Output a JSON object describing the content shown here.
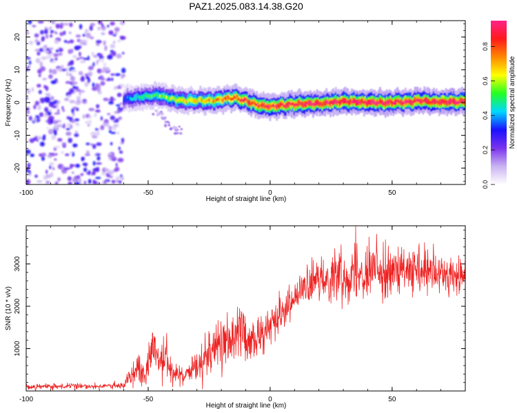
{
  "title": "PAZ1.2025.083.14.38.G20",
  "chart_data": [
    {
      "type": "heatmap",
      "xlabel": "Height of straight line (km)",
      "ylabel": "Frequency (Hz)",
      "xlim": [
        -100,
        80
      ],
      "ylim": [
        -25,
        25
      ],
      "xticks": [
        -100,
        -50,
        0,
        50
      ],
      "yticks": [
        -20,
        -10,
        0,
        10,
        20
      ],
      "colorbar": {
        "label": "Normalized spectral amplitude",
        "range": [
          0,
          0.95
        ],
        "ticks": [
          0.0,
          0.2,
          0.4,
          0.6,
          0.8
        ],
        "colors": [
          "#ffffff",
          "#c9b3f2",
          "#7a33ee",
          "#1a10ff",
          "#00d8ff",
          "#22ff22",
          "#ffff00",
          "#ff8800",
          "#ff1a1a",
          "#ff2288"
        ]
      },
      "noise_region": {
        "x": [
          -100,
          -60
        ],
        "f": [
          -25,
          25
        ]
      },
      "ridge": {
        "x": [
          -60,
          -55,
          -50,
          -45,
          -40,
          -35,
          -30,
          -25,
          -20,
          -15,
          -10,
          -5,
          0,
          5,
          10,
          15,
          20,
          25,
          30,
          35,
          40,
          45,
          50,
          55,
          60,
          65,
          70,
          75,
          80
        ],
        "f": [
          1.0,
          1.5,
          2.0,
          2.2,
          1.0,
          0.6,
          0.6,
          0.6,
          1.0,
          1.6,
          0.5,
          -0.8,
          -1.2,
          -0.8,
          -0.5,
          -0.4,
          -0.3,
          0.0,
          0.3,
          0.2,
          0.1,
          0.0,
          0.0,
          0.2,
          0.5,
          0.4,
          0.2,
          0.3,
          0.3
        ],
        "amplitude": [
          0.35,
          0.45,
          0.5,
          0.55,
          0.6,
          0.65,
          0.65,
          0.7,
          0.75,
          0.8,
          0.85,
          0.85,
          0.85,
          0.88,
          0.9,
          0.9,
          0.9,
          0.92,
          0.92,
          0.92,
          0.92,
          0.92,
          0.92,
          0.92,
          0.92,
          0.92,
          0.92,
          0.92,
          0.92
        ]
      },
      "side_lobe": {
        "x": [
          -48,
          -45,
          -42,
          -40,
          -38,
          -36
        ],
        "f": [
          -2,
          -4,
          -6,
          -8,
          -8.5,
          -9
        ]
      }
    },
    {
      "type": "line",
      "xlabel": "Height of straight line (km)",
      "ylabel": "SNR (10 * v/v)",
      "xlim": [
        -100,
        80
      ],
      "ylim": [
        0,
        3900
      ],
      "xticks": [
        -100,
        -50,
        0,
        50
      ],
      "yticks": [
        1000,
        2000,
        3000
      ],
      "series": [
        {
          "color": "#ee2222",
          "x": [
            -100,
            -90,
            -80,
            -70,
            -60,
            -58,
            -55,
            -52,
            -50,
            -48,
            -45,
            -43,
            -40,
            -38,
            -35,
            -32,
            -30,
            -28,
            -25,
            -23,
            -20,
            -18,
            -15,
            -13,
            -11,
            -10,
            -8,
            -5,
            -2,
            0,
            5,
            10,
            15,
            20,
            25,
            30,
            35,
            40,
            45,
            50,
            55,
            60,
            65,
            70,
            75,
            80
          ],
          "mean": [
            100,
            100,
            110,
            110,
            120,
            350,
            550,
            350,
            600,
            900,
            700,
            800,
            450,
            350,
            300,
            400,
            600,
            750,
            900,
            1050,
            1000,
            1100,
            1300,
            1400,
            1450,
            1100,
            1150,
            1250,
            1400,
            1550,
            1900,
            2200,
            2450,
            2600,
            2700,
            2750,
            2800,
            2850,
            2850,
            2800,
            2800,
            2800,
            2750,
            2750,
            2700,
            2700
          ],
          "spread": [
            60,
            60,
            60,
            60,
            70,
            250,
            350,
            300,
            400,
            500,
            400,
            450,
            250,
            250,
            200,
            300,
            450,
            500,
            500,
            500,
            500,
            550,
            550,
            600,
            650,
            500,
            450,
            450,
            400,
            350,
            350,
            350,
            400,
            400,
            500,
            550,
            600,
            600,
            550,
            500,
            500,
            500,
            500,
            450,
            450,
            450
          ]
        }
      ]
    }
  ]
}
